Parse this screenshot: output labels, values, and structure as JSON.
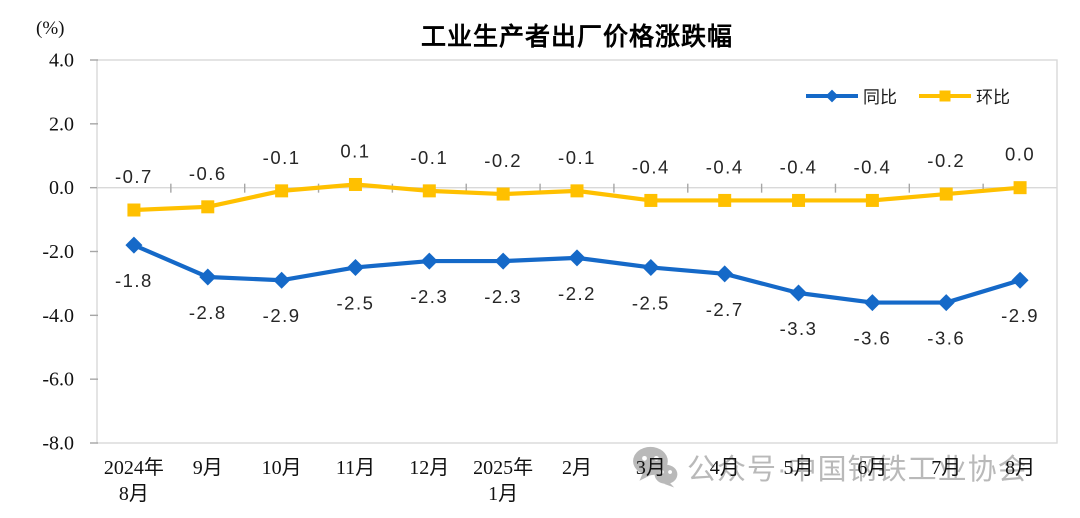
{
  "chart_data": {
    "type": "line",
    "title": "工业生产者出厂价格涨跌幅",
    "unit_label": "(%)",
    "categories": [
      "2024年8月",
      "9月",
      "10月",
      "11月",
      "12月",
      "2025年1月",
      "2月",
      "3月",
      "4月",
      "5月",
      "6月",
      "7月",
      "8月"
    ],
    "category_display": [
      [
        "2024年",
        "8月"
      ],
      [
        "9月"
      ],
      [
        "10月"
      ],
      [
        "11月"
      ],
      [
        "12月"
      ],
      [
        "2025年",
        "1月"
      ],
      [
        "2月"
      ],
      [
        "3月"
      ],
      [
        "4月"
      ],
      [
        "5月"
      ],
      [
        "6月"
      ],
      [
        "7月"
      ],
      [
        "8月"
      ]
    ],
    "series": [
      {
        "name": "同比",
        "color": "#1569c8",
        "marker": "diamond",
        "label_position": "below",
        "values": [
          -1.8,
          -2.8,
          -2.9,
          -2.5,
          -2.3,
          -2.3,
          -2.2,
          -2.5,
          -2.7,
          -3.3,
          -3.6,
          -3.6,
          -2.9
        ],
        "point_labels": [
          "-1.8",
          "-2.8",
          "-2.9",
          "-2.5",
          "-2.3",
          "-2.3",
          "-2.2",
          "-2.5",
          "-2.7",
          "-3.3",
          "-3.6",
          "-3.6",
          "-2.9"
        ]
      },
      {
        "name": "环比",
        "color": "#ffc000",
        "marker": "square",
        "label_position": "above",
        "values": [
          -0.7,
          -0.6,
          -0.1,
          0.1,
          -0.1,
          -0.2,
          -0.1,
          -0.4,
          -0.4,
          -0.4,
          -0.4,
          -0.2,
          0.0
        ],
        "point_labels": [
          "-0.7",
          "-0.6",
          "-0.1",
          "0.1",
          "-0.1",
          "-0.2",
          "-0.1",
          "-0.4",
          "-0.4",
          "-0.4",
          "-0.4",
          "-0.2",
          "0.0"
        ]
      }
    ],
    "ylim": [
      -8.0,
      4.0
    ],
    "yticks": [
      4.0,
      2.0,
      0.0,
      -2.0,
      -4.0,
      -6.0,
      -8.0
    ],
    "ytick_labels": [
      "4.0",
      "2.0",
      "0.0",
      "-2.0",
      "-4.0",
      "-6.0",
      "-8.0"
    ],
    "grid": false,
    "legend_position": "top-right",
    "axis_color": "#d9d9d9",
    "tick_color": "#a6a6a6"
  },
  "watermark": {
    "icon": "wechat-icon",
    "text": "公众号·中国钢铁工业协会",
    "color": "#b9b9b9"
  }
}
